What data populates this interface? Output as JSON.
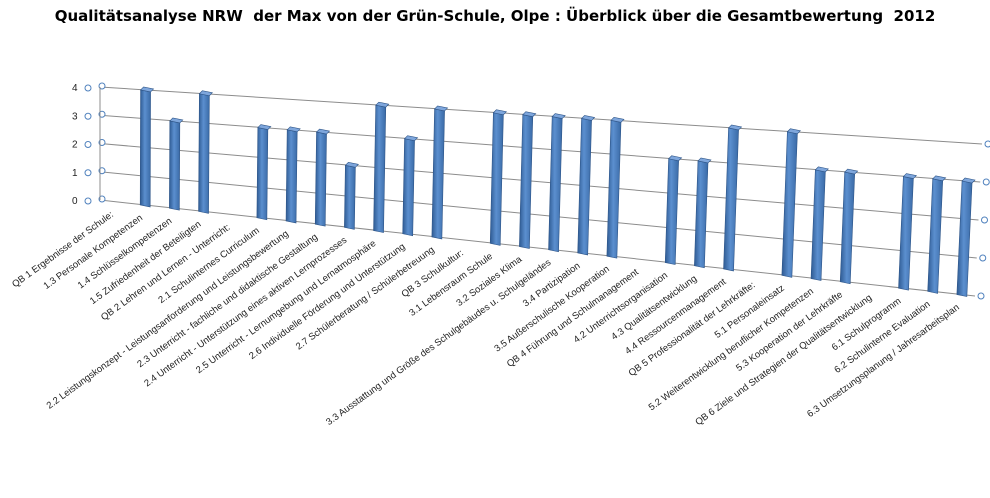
{
  "chart_data": {
    "type": "bar",
    "title": "Qualitätsanalyse NRW  der Max von der Grün-Schule, Olpe : Überblick über die Gesamtbewertung  2012",
    "xlabel": "",
    "ylabel": "",
    "ylim": [
      0,
      4
    ],
    "y_ticks": [
      "0",
      "1",
      "2",
      "3",
      "4"
    ],
    "grid": true,
    "legend": "none",
    "categories": [
      "QB 1     Ergebnisse der Schule:",
      "1.3 Personale Kompetenzen",
      "1.4 Schlüsselkompetenzen",
      "1.5 Zufriedenheit der Beteiligten",
      "QB 2   Lehren und Lernen - Unterricht:",
      "2.1 Schulinternes Curriculum",
      "2.2 Leistungskonzept - Leistungsanforderung und Leistungsbewertung",
      "2.3 Unterricht - fachliche und didaktische Gestaltung",
      "2.4 Unterricht - Unterstützung eines aktiven Lernprozesses",
      "2.5 Unterricht - Lernumgebung und Lernatmosphäre",
      "2.6 Individuelle Förderung und Unterstützung",
      "2.7 Schülerberatung / Schülerbetreuung",
      "QB 3   Schulkultur:",
      "3.1 Lebensraum Schule",
      "3.2 Soziales Klima",
      "3.3 Ausstattung und Größe des Schulgebäudes u. Schulgeländes",
      "3.4 Partizipation",
      "3.5 Außerschulische Kooperation",
      "QB 4   Führung und Schulmanagement",
      "4.2 Unterrichtsorganisation",
      "4.3 Qualitätsentwicklung",
      "4.4 Ressourcenmanagement",
      "QB 5   Professionalität der Lehrkräfte:",
      "5.1 Personaleinsatz",
      "5.2 Weiterentwicklung beruflicher Kompetenzen",
      "5.3 Kooperation der Lehrkräfte",
      "QB 6   Ziele und Strategien der Qualitätsentwicklung",
      "6.1 Schulprogramm",
      "6.2 Schulinterne Evaluation",
      "6.3 Umsetzungsplanung / Jahresarbeitsplan"
    ],
    "values": [
      null,
      4,
      3,
      4,
      null,
      3,
      3,
      3,
      2,
      4,
      3,
      4,
      null,
      4,
      4,
      4,
      4,
      4,
      null,
      3,
      3,
      4,
      null,
      4,
      3,
      3,
      null,
      3,
      3,
      3
    ],
    "bar_color": "#4F81BD"
  }
}
